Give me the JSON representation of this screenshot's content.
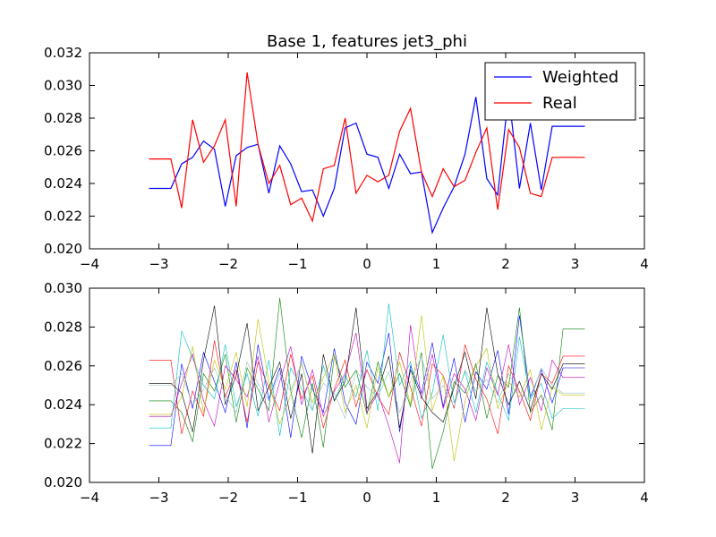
{
  "chart_data": [
    {
      "type": "line",
      "title": "Base 1, features jet3_phi",
      "xlabel": "",
      "ylabel": "",
      "xlim": [
        -4,
        4
      ],
      "ylim": [
        0.02,
        0.032
      ],
      "xticks": [
        "−4",
        "−3",
        "−2",
        "−1",
        "0",
        "1",
        "2",
        "3",
        "4"
      ],
      "yticks": [
        "0.020",
        "0.022",
        "0.024",
        "0.026",
        "0.028",
        "0.030",
        "0.032"
      ],
      "legend_position": "top-right",
      "x": [
        -3.1416,
        -2.9845,
        -2.8274,
        -2.6704,
        -2.5133,
        -2.3562,
        -2.1991,
        -2.042,
        -1.885,
        -1.7279,
        -1.5708,
        -1.4137,
        -1.2566,
        -1.0996,
        -0.9425,
        -0.7854,
        -0.6283,
        -0.4712,
        -0.3142,
        -0.1571,
        0.0,
        0.1571,
        0.3142,
        0.4712,
        0.6283,
        0.7854,
        0.9425,
        1.0996,
        1.2566,
        1.4137,
        1.5708,
        1.7279,
        1.885,
        2.042,
        2.1991,
        2.3562,
        2.5133,
        2.6704,
        2.8274,
        2.9845,
        3.1416
      ],
      "series": [
        {
          "name": "Weighted",
          "color": "#0000ff",
          "values": [
            0.0237,
            0.0237,
            0.0237,
            0.0252,
            0.0256,
            0.0266,
            0.0261,
            0.0226,
            0.0257,
            0.0262,
            0.0264,
            0.0234,
            0.0263,
            0.0252,
            0.0235,
            0.0236,
            0.022,
            0.0237,
            0.0274,
            0.0277,
            0.0258,
            0.0256,
            0.0237,
            0.0258,
            0.0246,
            0.0247,
            0.021,
            0.0225,
            0.0238,
            0.0258,
            0.0293,
            0.0243,
            0.0233,
            0.0295,
            0.0237,
            0.0277,
            0.0236,
            0.0275,
            0.0275,
            0.0275,
            0.0275
          ]
        },
        {
          "name": "Real",
          "color": "#ff0000",
          "values": [
            0.0255,
            0.0255,
            0.0255,
            0.0225,
            0.0279,
            0.0253,
            0.0263,
            0.0279,
            0.0226,
            0.0308,
            0.0264,
            0.024,
            0.0251,
            0.0227,
            0.0231,
            0.0217,
            0.0249,
            0.0251,
            0.028,
            0.0234,
            0.0245,
            0.0241,
            0.0245,
            0.0272,
            0.0286,
            0.0247,
            0.0232,
            0.0249,
            0.0238,
            0.0242,
            0.0259,
            0.0274,
            0.0224,
            0.0273,
            0.0262,
            0.0234,
            0.0232,
            0.0256,
            0.0256,
            0.0256,
            0.0256
          ]
        }
      ]
    },
    {
      "type": "line",
      "title": "",
      "xlabel": "",
      "ylabel": "",
      "xlim": [
        -4,
        4
      ],
      "ylim": [
        0.02,
        0.03
      ],
      "xticks": [
        "−4",
        "−3",
        "−2",
        "−1",
        "0",
        "1",
        "2",
        "3",
        "4"
      ],
      "yticks": [
        "0.020",
        "0.022",
        "0.024",
        "0.026",
        "0.028",
        "0.030"
      ],
      "x": [
        -3.1416,
        -2.9845,
        -2.8274,
        -2.6704,
        -2.5133,
        -2.3562,
        -2.1991,
        -2.042,
        -1.885,
        -1.7279,
        -1.5708,
        -1.4137,
        -1.2566,
        -1.0996,
        -0.9425,
        -0.7854,
        -0.6283,
        -0.4712,
        -0.3142,
        -0.1571,
        0.0,
        0.1571,
        0.3142,
        0.4712,
        0.6283,
        0.7854,
        0.9425,
        1.0996,
        1.2566,
        1.4137,
        1.5708,
        1.7279,
        1.885,
        2.042,
        2.1991,
        2.3562,
        2.5133,
        2.6704,
        2.8274,
        2.9845,
        3.1416
      ],
      "series": [
        {
          "color": "#0000ff",
          "values": [
            0.0219,
            0.0219,
            0.0219,
            0.0261,
            0.0238,
            0.0267,
            0.0252,
            0.0236,
            0.0262,
            0.0228,
            0.0271,
            0.0243,
            0.0259,
            0.0223,
            0.0265,
            0.0248,
            0.0236,
            0.0269,
            0.0241,
            0.023,
            0.0262,
            0.0251,
            0.0277,
            0.0226,
            0.026,
            0.0246,
            0.0272,
            0.0239,
            0.0264,
            0.0231,
            0.0257,
            0.0248,
            0.0268,
            0.0235,
            0.0286,
            0.0244,
            0.0258,
            0.0241,
            0.0259,
            0.0259,
            0.0259
          ]
        },
        {
          "color": "#008000",
          "values": [
            0.0242,
            0.0242,
            0.0242,
            0.0236,
            0.0221,
            0.0256,
            0.0247,
            0.0266,
            0.0231,
            0.0259,
            0.0248,
            0.0237,
            0.0295,
            0.0247,
            0.0223,
            0.0251,
            0.0218,
            0.0265,
            0.0249,
            0.0258,
            0.0235,
            0.0262,
            0.0244,
            0.0256,
            0.0239,
            0.0267,
            0.0207,
            0.0226,
            0.0252,
            0.0246,
            0.0261,
            0.0233,
            0.0255,
            0.0249,
            0.029,
            0.0236,
            0.0245,
            0.0227,
            0.0279,
            0.0279,
            0.0279
          ]
        },
        {
          "color": "#ff0000",
          "values": [
            0.0263,
            0.0263,
            0.0263,
            0.0225,
            0.0247,
            0.0234,
            0.0273,
            0.0244,
            0.0258,
            0.0231,
            0.0262,
            0.0249,
            0.0237,
            0.0266,
            0.0243,
            0.0255,
            0.0228,
            0.0248,
            0.0263,
            0.0239,
            0.0258,
            0.0244,
            0.0235,
            0.0267,
            0.0249,
            0.0229,
            0.0261,
            0.0255,
            0.0238,
            0.0271,
            0.0253,
            0.0243,
            0.0225,
            0.026,
            0.0247,
            0.0232,
            0.0256,
            0.0251,
            0.0265,
            0.0265,
            0.0265
          ]
        },
        {
          "color": "#00bfbf",
          "values": [
            0.0228,
            0.0228,
            0.0228,
            0.0278,
            0.0264,
            0.025,
            0.0243,
            0.0271,
            0.0239,
            0.0256,
            0.0234,
            0.0263,
            0.0224,
            0.0259,
            0.0248,
            0.0237,
            0.026,
            0.0242,
            0.0255,
            0.0244,
            0.0268,
            0.0237,
            0.0292,
            0.025,
            0.0262,
            0.0233,
            0.0246,
            0.0276,
            0.0241,
            0.0257,
            0.0236,
            0.0262,
            0.0246,
            0.0232,
            0.0275,
            0.0243,
            0.0251,
            0.0233,
            0.0238,
            0.0238,
            0.0238
          ]
        },
        {
          "color": "#bf00bf",
          "values": [
            0.0234,
            0.0234,
            0.0234,
            0.0251,
            0.0266,
            0.0242,
            0.0229,
            0.026,
            0.0253,
            0.0244,
            0.0265,
            0.0231,
            0.0252,
            0.027,
            0.024,
            0.0258,
            0.0234,
            0.0247,
            0.0256,
            0.0277,
            0.0236,
            0.0246,
            0.0229,
            0.021,
            0.0281,
            0.0243,
            0.0266,
            0.0238,
            0.0256,
            0.0248,
            0.0232,
            0.0259,
            0.0245,
            0.0271,
            0.024,
            0.0254,
            0.0237,
            0.0263,
            0.0254,
            0.0254,
            0.0254
          ]
        },
        {
          "color": "#bfbf00",
          "values": [
            0.0235,
            0.0235,
            0.0235,
            0.0244,
            0.027,
            0.0236,
            0.0263,
            0.0248,
            0.0267,
            0.0239,
            0.0284,
            0.0252,
            0.023,
            0.0245,
            0.0261,
            0.0241,
            0.0254,
            0.0266,
            0.0236,
            0.025,
            0.0228,
            0.0259,
            0.0244,
            0.0262,
            0.024,
            0.0286,
            0.0237,
            0.0255,
            0.0211,
            0.0242,
            0.026,
            0.0269,
            0.0238,
            0.0252,
            0.0244,
            0.0258,
            0.0227,
            0.0249,
            0.0245,
            0.0245,
            0.0245
          ]
        },
        {
          "color": "#000000",
          "values": [
            0.0251,
            0.0251,
            0.0251,
            0.0246,
            0.0226,
            0.0263,
            0.0291,
            0.024,
            0.0255,
            0.0282,
            0.0237,
            0.0249,
            0.0262,
            0.0233,
            0.0256,
            0.0215,
            0.0266,
            0.0242,
            0.0252,
            0.029,
            0.0238,
            0.0247,
            0.0265,
            0.0228,
            0.0258,
            0.0244,
            0.0236,
            0.0231,
            0.0249,
            0.0267,
            0.0243,
            0.029,
            0.0256,
            0.024,
            0.0252,
            0.0237,
            0.0256,
            0.0248,
            0.0261,
            0.0261,
            0.0261
          ]
        },
        {
          "color": "#8fbfbf",
          "values": [
            0.025,
            0.025,
            0.025,
            0.0256,
            0.024,
            0.0248,
            0.0259,
            0.0245,
            0.0236,
            0.0262,
            0.0251,
            0.0242,
            0.0256,
            0.0247,
            0.0262,
            0.0238,
            0.0251,
            0.0246,
            0.0233,
            0.0258,
            0.0249,
            0.0244,
            0.0257,
            0.0236,
            0.0252,
            0.0265,
            0.0243,
            0.025,
            0.0239,
            0.0258,
            0.0247,
            0.0253,
            0.0241,
            0.0256,
            0.0246,
            0.0242,
            0.0259,
            0.025,
            0.0246,
            0.0246,
            0.0246
          ]
        }
      ]
    }
  ]
}
